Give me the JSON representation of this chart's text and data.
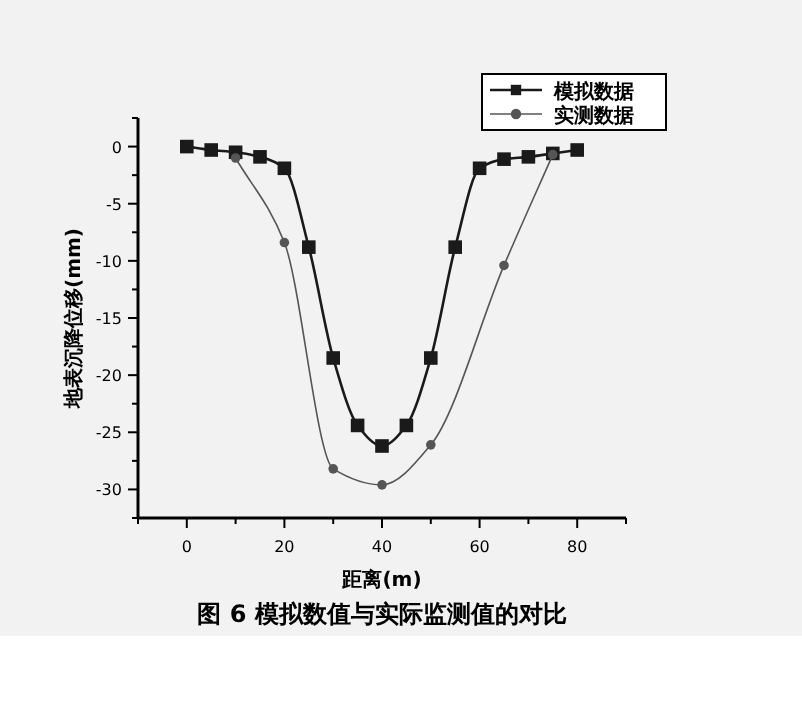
{
  "chart_data": {
    "type": "line",
    "title": "图 6  模拟数值与实际监测值的对比",
    "xlabel": "距离(m)",
    "ylabel": "地表沉降位移(mm)",
    "xlim": [
      -10,
      90
    ],
    "xticks": [
      0,
      20,
      40,
      60,
      80
    ],
    "ylim": [
      -32.5,
      2.5
    ],
    "yticks": [
      -30,
      -25,
      -20,
      -15,
      -10,
      -5,
      0
    ],
    "legend": "top right",
    "series": [
      {
        "name": "模拟数据",
        "color": "#1a1a1a",
        "marker": "square",
        "x": [
          0,
          5,
          10,
          15,
          20,
          25,
          30,
          35,
          40,
          45,
          50,
          55,
          60,
          65,
          70,
          75,
          80
        ],
        "values": [
          0,
          -0.3,
          -0.5,
          -0.9,
          -1.9,
          -8.8,
          -18.5,
          -24.4,
          -26.2,
          -24.4,
          -18.5,
          -8.8,
          -1.9,
          -1.1,
          -0.9,
          -0.6,
          -0.3
        ]
      },
      {
        "name": "实测数据",
        "color": "#555555",
        "marker": "circle",
        "x": [
          10,
          20,
          30,
          40,
          50,
          65,
          75
        ],
        "values": [
          -1,
          -8.4,
          -28.2,
          -29.6,
          -26.1,
          -10.4,
          -0.7
        ]
      }
    ]
  }
}
